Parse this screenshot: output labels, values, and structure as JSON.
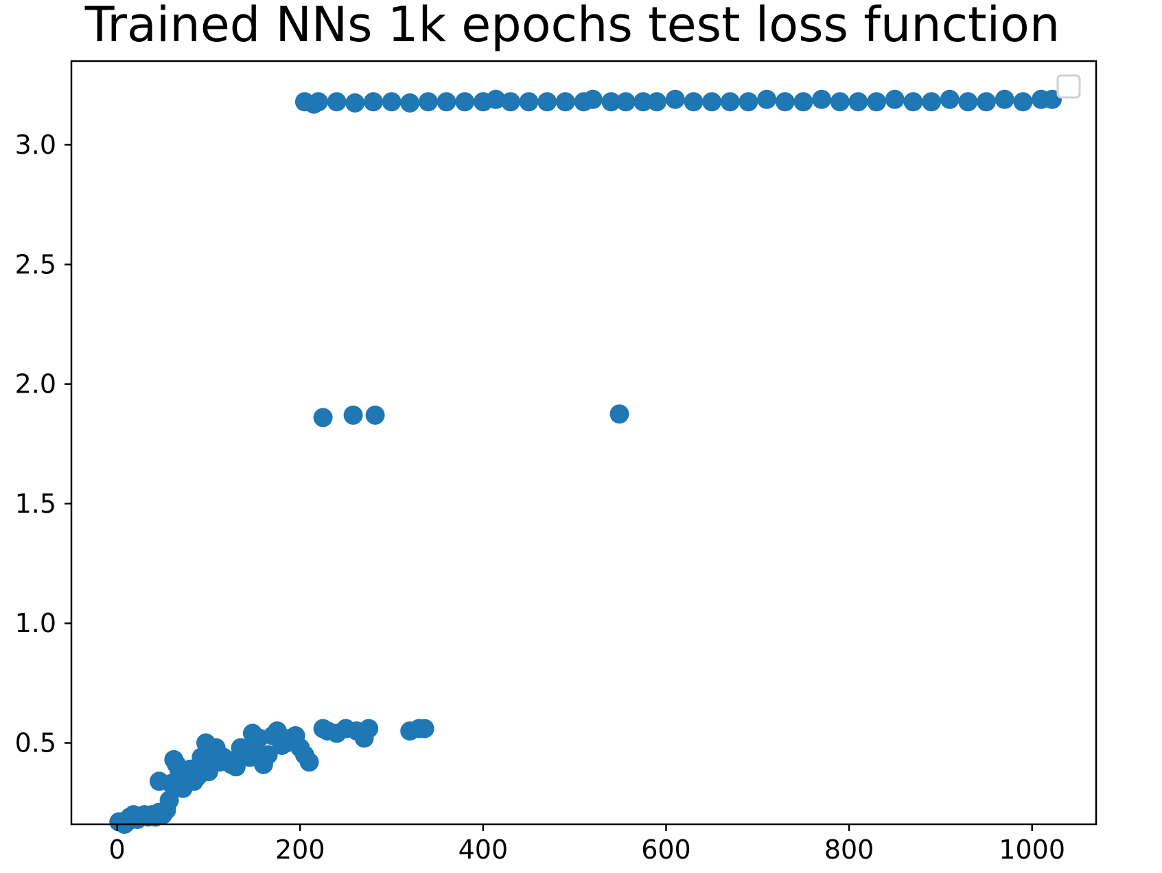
{
  "chart_data": {
    "type": "scatter",
    "title": "Trained NNs 1k epochs test loss function",
    "xlabel": "",
    "ylabel": "",
    "xlim": [
      -50,
      1070
    ],
    "ylim": [
      0.16,
      3.35
    ],
    "xticks": [
      0,
      200,
      400,
      600,
      800,
      1000
    ],
    "xtick_labels": [
      "0",
      "200",
      "400",
      "600",
      "800",
      "1000"
    ],
    "yticks": [
      0.5,
      1.0,
      1.5,
      2.0,
      2.5,
      3.0
    ],
    "ytick_labels": [
      "0.5",
      "1.0",
      "1.5",
      "2.0",
      "2.5",
      "3.0"
    ],
    "grid": false,
    "legend": {
      "placement": "top-right",
      "entries": []
    },
    "marker_color": "#1f77b4",
    "series": [
      {
        "x": [
          2,
          5,
          8,
          11,
          14,
          18,
          22,
          26,
          30,
          34,
          38,
          42,
          46,
          50,
          54,
          57,
          59,
          62,
          65,
          68,
          72,
          76,
          80,
          84,
          88,
          92,
          96,
          100,
          104,
          108,
          112,
          116,
          120,
          125,
          130,
          135,
          140,
          145,
          150,
          155,
          160,
          165,
          170,
          175,
          180,
          185,
          190,
          195,
          200,
          205,
          210,
          225,
          230,
          240,
          250,
          262,
          270,
          275,
          320,
          330,
          336,
          46,
          97,
          148
        ],
        "y": [
          0.17,
          0.17,
          0.16,
          0.17,
          0.19,
          0.2,
          0.18,
          0.19,
          0.2,
          0.19,
          0.2,
          0.19,
          0.21,
          0.2,
          0.22,
          0.26,
          0.33,
          0.43,
          0.41,
          0.38,
          0.31,
          0.36,
          0.39,
          0.34,
          0.36,
          0.44,
          0.42,
          0.38,
          0.45,
          0.48,
          0.42,
          0.44,
          0.43,
          0.41,
          0.4,
          0.48,
          0.45,
          0.44,
          0.47,
          0.52,
          0.41,
          0.45,
          0.53,
          0.55,
          0.49,
          0.5,
          0.52,
          0.53,
          0.48,
          0.45,
          0.42,
          0.56,
          0.55,
          0.54,
          0.56,
          0.55,
          0.52,
          0.56,
          0.55,
          0.56,
          0.56,
          0.34,
          0.5,
          0.54
        ]
      },
      {
        "x": [
          225,
          258,
          282,
          549
        ],
        "y": [
          1.86,
          1.87,
          1.87,
          1.875
        ]
      },
      {
        "x": [
          205,
          215,
          220,
          240,
          260,
          280,
          300,
          320,
          340,
          360,
          380,
          400,
          414,
          430,
          450,
          470,
          490,
          510,
          520,
          540,
          556,
          575,
          590,
          610,
          630,
          650,
          670,
          690,
          710,
          730,
          750,
          770,
          790,
          810,
          830,
          850,
          870,
          890,
          910,
          930,
          950,
          970,
          990,
          1010,
          1022
        ],
        "y": [
          3.18,
          3.17,
          3.18,
          3.18,
          3.175,
          3.18,
          3.18,
          3.175,
          3.18,
          3.18,
          3.18,
          3.18,
          3.19,
          3.18,
          3.18,
          3.18,
          3.18,
          3.18,
          3.19,
          3.18,
          3.18,
          3.18,
          3.18,
          3.19,
          3.18,
          3.18,
          3.18,
          3.18,
          3.19,
          3.18,
          3.18,
          3.19,
          3.18,
          3.18,
          3.18,
          3.19,
          3.18,
          3.18,
          3.19,
          3.18,
          3.18,
          3.19,
          3.18,
          3.19,
          3.19
        ]
      }
    ]
  }
}
